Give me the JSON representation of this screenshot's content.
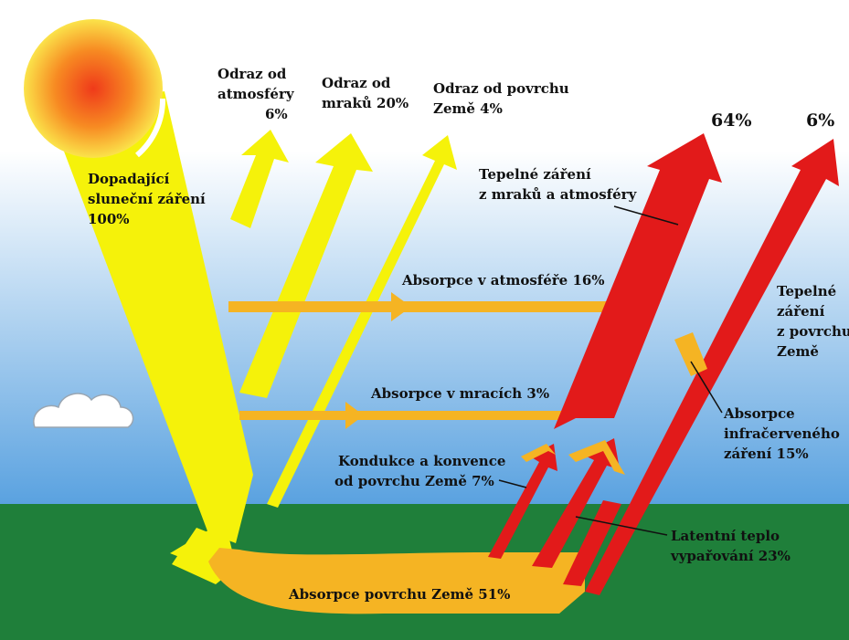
{
  "colors": {
    "sky_top": "#ffffff",
    "sky_bottom": "#5aa2e0",
    "ground": "#1f7f3a",
    "solar": "#f5f20a",
    "absorption": "#f5b423",
    "thermal": "#e21a1a",
    "sun_core": "#ef3a1a",
    "sun_edge": "#fbe34a"
  },
  "labels": {
    "incoming": [
      "Dopadající",
      "sluneční záření",
      "100%"
    ],
    "refl_atm": [
      "Odraz od",
      "atmosféry",
      "6%"
    ],
    "refl_clouds": [
      "Odraz od",
      "mraků 20%"
    ],
    "refl_surface": [
      "Odraz od povrchu",
      "Země 4%"
    ],
    "thermal_clouds_atm": [
      "Tepelné záření",
      "z mraků a atmosféry"
    ],
    "abs_atm": "Absorpce v atmosféře 16%",
    "abs_clouds": "Absorpce v mracích 3%",
    "thermal_surface": [
      "Tepelné",
      "záření",
      "z povrchu",
      "Země"
    ],
    "abs_ir": [
      "Absorpce",
      "infračerveného",
      "záření 15%"
    ],
    "conduction": [
      "Kondukce a konvence",
      "od povrchu Země 7%"
    ],
    "latent": [
      "Latentní teplo",
      "vypařování 23%"
    ],
    "abs_surface": "Absorpce povrchu Země 51%",
    "out_64": "64%",
    "out_6": "6%"
  }
}
